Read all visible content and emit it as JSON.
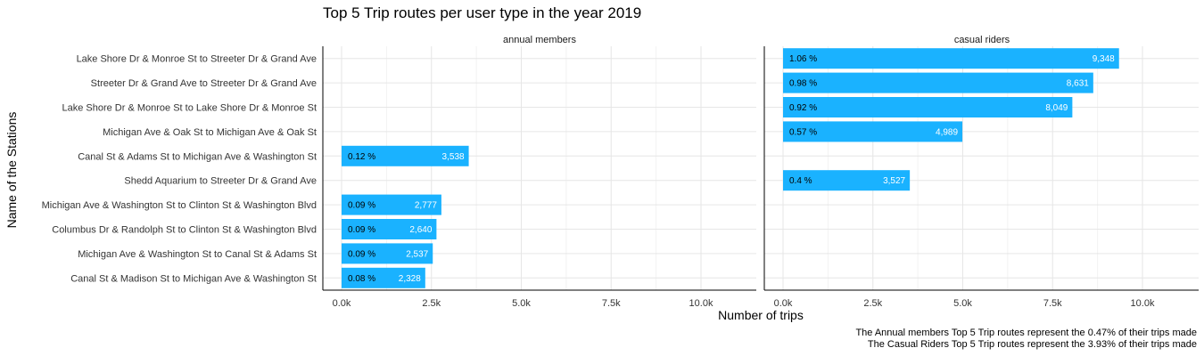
{
  "chart_data": {
    "type": "bar",
    "orientation": "horizontal",
    "title": "Top 5 Trip routes per user type in the year 2019",
    "xlabel": "Number of trips",
    "ylabel": "Name of the Stations",
    "xlim": [
      0,
      11000
    ],
    "x_ticks": [
      0,
      2500,
      5000,
      7500,
      10000
    ],
    "x_tick_labels": [
      "0.0k",
      "2.5k",
      "5.0k",
      "7.5k",
      "10.0k"
    ],
    "grid": true,
    "categories": [
      "Lake Shore Dr & Monroe St to Streeter Dr & Grand Ave",
      "Streeter Dr & Grand Ave to Streeter Dr & Grand Ave",
      "Lake Shore Dr & Monroe St to Lake Shore Dr & Monroe St",
      "Michigan Ave & Oak St to Michigan Ave & Oak St",
      "Canal St & Adams St to Michigan Ave & Washington St",
      "Shedd Aquarium to Streeter Dr & Grand Ave",
      "Michigan Ave & Washington St to Clinton St & Washington Blvd",
      "Columbus Dr & Randolph St to Clinton St & Washington Blvd",
      "Michigan Ave & Washington St to Canal St & Adams St",
      "Canal St & Madison St to Michigan Ave & Washington St"
    ],
    "panels": [
      {
        "name": "annual members",
        "bars": [
          {
            "category": "Canal St & Adams St to Michigan Ave & Washington St",
            "value": 3538,
            "value_label": "3,538",
            "percent_label": "0.12 %"
          },
          {
            "category": "Michigan Ave & Washington St to Clinton St & Washington Blvd",
            "value": 2777,
            "value_label": "2,777",
            "percent_label": "0.09 %"
          },
          {
            "category": "Columbus Dr & Randolph St to Clinton St & Washington Blvd",
            "value": 2640,
            "value_label": "2,640",
            "percent_label": "0.09 %"
          },
          {
            "category": "Michigan Ave & Washington St to Canal St & Adams St",
            "value": 2537,
            "value_label": "2,537",
            "percent_label": "0.09 %"
          },
          {
            "category": "Canal St & Madison St to Michigan Ave & Washington St",
            "value": 2328,
            "value_label": "2,328",
            "percent_label": "0.08 %"
          }
        ]
      },
      {
        "name": "casual riders",
        "bars": [
          {
            "category": "Lake Shore Dr & Monroe St to Streeter Dr & Grand Ave",
            "value": 9348,
            "value_label": "9,348",
            "percent_label": "1.06 %"
          },
          {
            "category": "Streeter Dr & Grand Ave to Streeter Dr & Grand Ave",
            "value": 8631,
            "value_label": "8,631",
            "percent_label": "0.98 %"
          },
          {
            "category": "Lake Shore Dr & Monroe St to Lake Shore Dr & Monroe St",
            "value": 8049,
            "value_label": "8,049",
            "percent_label": "0.92 %"
          },
          {
            "category": "Michigan Ave & Oak St to Michigan Ave & Oak St",
            "value": 4989,
            "value_label": "4,989",
            "percent_label": "0.57 %"
          },
          {
            "category": "Shedd Aquarium to Streeter Dr & Grand Ave",
            "value": 3527,
            "value_label": "3,527",
            "percent_label": "0.4 %"
          }
        ]
      }
    ],
    "captions": [
      "The Annual members Top 5 Trip routes represent the 0.47% of their trips made",
      "The Casual Riders Top 5 Trip routes represent the 3.93% of their trips made"
    ],
    "bar_color": "#1ab2ff"
  }
}
